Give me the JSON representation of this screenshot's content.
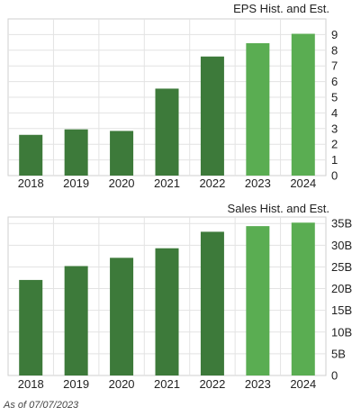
{
  "chart_data": [
    {
      "type": "bar",
      "title": "EPS Hist. and Est.",
      "categories": [
        "2018",
        "2019",
        "2020",
        "2021",
        "2022",
        "2023",
        "2024"
      ],
      "values": [
        2.6,
        2.95,
        2.85,
        5.55,
        7.6,
        8.45,
        9.05
      ],
      "ylim": [
        0,
        10
      ],
      "yticks": [
        0,
        1,
        2,
        3,
        4,
        5,
        6,
        7,
        8,
        9
      ],
      "ytick_labels": [
        "0",
        "1",
        "2",
        "3",
        "4",
        "5",
        "6",
        "7",
        "8",
        "9"
      ],
      "estimate_from_index": 5,
      "grid": true,
      "colors": {
        "historical": "#3d7a3a",
        "estimate": "#5aad52",
        "grid": "#e3e3e3",
        "plot_bg": "#ffffff"
      }
    },
    {
      "type": "bar",
      "title": "Sales Hist. and Est.",
      "categories": [
        "2018",
        "2019",
        "2020",
        "2021",
        "2022",
        "2023",
        "2024"
      ],
      "values": [
        22.0,
        25.2,
        27.1,
        29.3,
        33.1,
        34.4,
        35.2
      ],
      "ylim": [
        0,
        36.5
      ],
      "yticks": [
        0,
        5,
        10,
        15,
        20,
        25,
        30,
        35
      ],
      "ytick_labels": [
        "0",
        "5B",
        "10B",
        "15B",
        "20B",
        "25B",
        "30B",
        "35B"
      ],
      "estimate_from_index": 5,
      "grid": true,
      "colors": {
        "historical": "#3d7a3a",
        "estimate": "#5aad52",
        "grid": "#e3e3e3",
        "plot_bg": "#ffffff"
      }
    }
  ],
  "footer": {
    "as_of": "As of 07/07/2023"
  }
}
